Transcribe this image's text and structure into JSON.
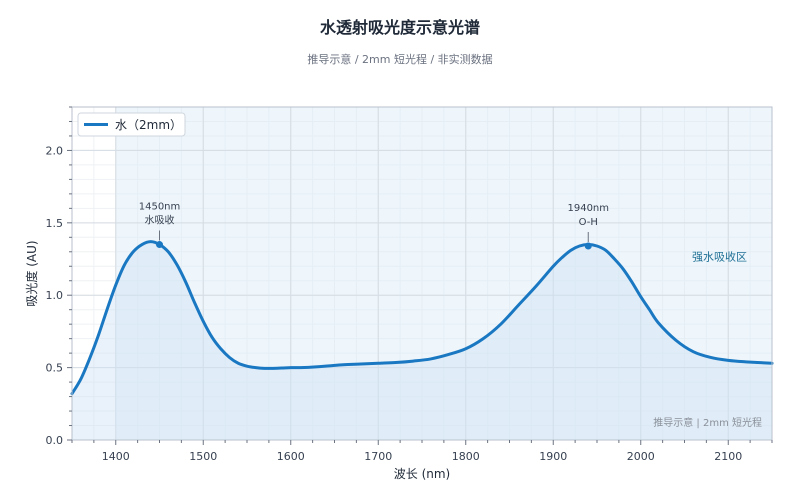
{
  "title": "水透射吸光度示意光谱",
  "subtitle": "推导示意 / 2mm 短光程 / 非实测数据",
  "chart_data": {
    "type": "line",
    "title": "水透射吸光度示意光谱",
    "xlabel": "波长 (nm)",
    "ylabel": "吸光度 (AU)",
    "xlim": [
      1350,
      2150
    ],
    "ylim": [
      0,
      2.3
    ],
    "x_ticks": [
      1400,
      1500,
      1600,
      1700,
      1800,
      1900,
      2000,
      2100
    ],
    "y_ticks": [
      0.0,
      0.5,
      1.0,
      1.5,
      2.0
    ],
    "grid": true,
    "legend_position": "top-left",
    "series": [
      {
        "name": "水（2mm）",
        "color": "#1a78c2",
        "x": [
          1350,
          1360,
          1370,
          1380,
          1390,
          1400,
          1410,
          1420,
          1430,
          1440,
          1450,
          1460,
          1470,
          1480,
          1490,
          1500,
          1510,
          1520,
          1530,
          1540,
          1550,
          1560,
          1570,
          1580,
          1590,
          1600,
          1610,
          1620,
          1640,
          1660,
          1680,
          1700,
          1720,
          1740,
          1760,
          1780,
          1800,
          1820,
          1840,
          1860,
          1880,
          1900,
          1910,
          1920,
          1930,
          1940,
          1950,
          1960,
          1970,
          1980,
          1990,
          2000,
          2010,
          2020,
          2040,
          2060,
          2080,
          2100,
          2120,
          2150
        ],
        "y": [
          0.32,
          0.42,
          0.56,
          0.72,
          0.9,
          1.07,
          1.21,
          1.3,
          1.35,
          1.37,
          1.35,
          1.3,
          1.21,
          1.09,
          0.95,
          0.82,
          0.71,
          0.63,
          0.57,
          0.53,
          0.51,
          0.5,
          0.495,
          0.495,
          0.497,
          0.5,
          0.5,
          0.502,
          0.51,
          0.52,
          0.525,
          0.53,
          0.535,
          0.545,
          0.56,
          0.59,
          0.63,
          0.7,
          0.8,
          0.93,
          1.06,
          1.2,
          1.26,
          1.31,
          1.34,
          1.35,
          1.34,
          1.31,
          1.25,
          1.18,
          1.09,
          0.99,
          0.9,
          0.81,
          0.69,
          0.61,
          0.57,
          0.55,
          0.54,
          0.53
        ]
      }
    ],
    "annotations": [
      {
        "x": 1450,
        "y": 1.35,
        "lines": [
          "1450nm",
          "水吸收"
        ]
      },
      {
        "x": 1940,
        "y": 1.34,
        "lines": [
          "1940nm",
          "O-H"
        ]
      }
    ],
    "shaded_region": {
      "x_from": 1400,
      "x_to": 2150,
      "label": "强水吸收区"
    },
    "watermark": "推导示意 | 2mm 短光程"
  }
}
